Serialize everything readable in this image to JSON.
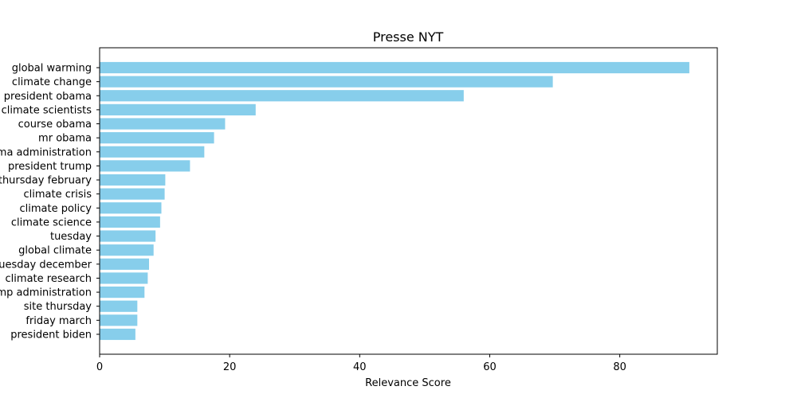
{
  "chart_data": {
    "type": "bar",
    "orientation": "horizontal",
    "title": "Presse NYT",
    "xlabel": "Relevance Score",
    "ylabel": "",
    "xlim": [
      0,
      95
    ],
    "xticks": [
      0,
      20,
      40,
      60,
      80
    ],
    "bar_color": "#87ceeb",
    "grid": false,
    "categories": [
      "global warming",
      "climate change",
      "president obama",
      "climate scientists",
      "course obama",
      "mr obama",
      "obama administration",
      "president trump",
      "thursday february",
      "climate crisis",
      "climate policy",
      "climate science",
      "tuesday",
      "global climate",
      "tuesday december",
      "climate research",
      "trump administration",
      "site thursday",
      "friday march",
      "president biden"
    ],
    "values": [
      90.7,
      69.7,
      56.0,
      24.0,
      19.3,
      17.6,
      16.1,
      13.9,
      10.1,
      10.0,
      9.5,
      9.3,
      8.6,
      8.3,
      7.6,
      7.4,
      6.9,
      5.8,
      5.8,
      5.5
    ]
  }
}
